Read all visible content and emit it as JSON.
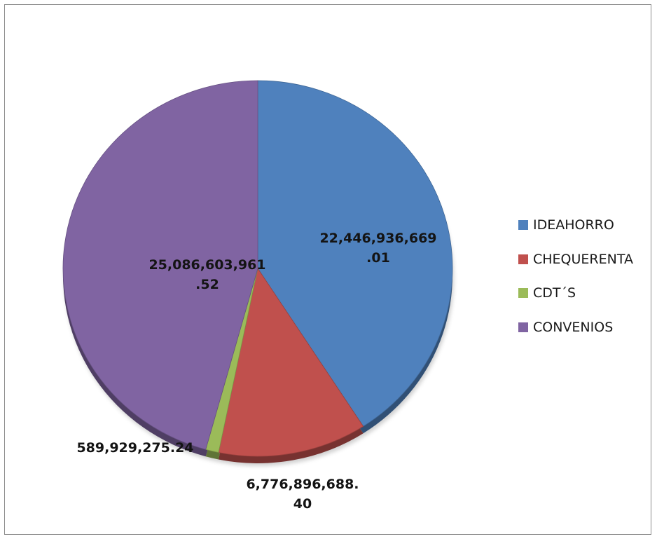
{
  "chart_data": {
    "type": "pie",
    "title": "",
    "categories": [
      "IDEAHORRO",
      "CHEQUERENTA",
      "CDT´S",
      "CONVENIOS"
    ],
    "values": [
      22446936669.01,
      6776896688.4,
      589929275.24,
      25086603961.52
    ],
    "data_labels": [
      [
        "22,446,936,669",
        ".01"
      ],
      [
        "6,776,896,688.",
        "40"
      ],
      [
        "589,929,275.24"
      ],
      [
        "25,086,603,961",
        ".52"
      ]
    ],
    "colors": [
      "#4f81bd",
      "#c0504d",
      "#9bbb59",
      "#8064a2"
    ],
    "start_angle_deg": 0,
    "direction": "clockwise",
    "style": "3d-pie",
    "legend_position": "right"
  }
}
